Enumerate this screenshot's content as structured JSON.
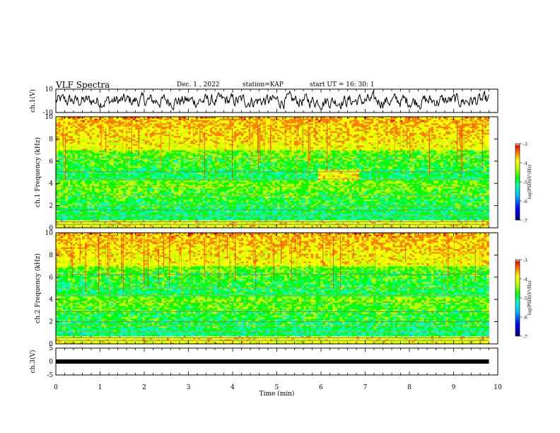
{
  "header": {
    "title": "VLF Spectra",
    "date": "Dec. 1 , 2022",
    "station": "station=KAP",
    "start": "start UT =  16: 30: 1"
  },
  "colorbar": {
    "label": "log(PSD)(V²/Hz)",
    "ticks": [
      "-3",
      "-4",
      "-5",
      "-6",
      "-7"
    ],
    "colors": [
      "#000080",
      "#0000ff",
      "#00bfff",
      "#00ffbf",
      "#00ff00",
      "#bfff00",
      "#ffff00",
      "#ff8000",
      "#ff0000",
      "#ffffff"
    ]
  },
  "chart_data": [
    {
      "type": "line",
      "name": "ch1-waveform",
      "ylabel": "ch.1(V)",
      "ylim": [
        -10,
        10
      ],
      "yticks": [
        "10",
        "-10"
      ],
      "y_level_approx": 0
    },
    {
      "type": "heatmap",
      "name": "ch1-spectrogram",
      "ylabel": "ch.1 Frequency (kHz)",
      "ylim": [
        0,
        10
      ],
      "yticks": [
        "0",
        "2",
        "4",
        "6",
        "8",
        "10"
      ],
      "zlim": [
        -7,
        -3
      ],
      "data_end_min": 9.8
    },
    {
      "type": "heatmap",
      "name": "ch2-spectrogram",
      "ylabel": "ch.2 Frequency (kHz)",
      "ylim": [
        0,
        10
      ],
      "yticks": [
        "0",
        "2",
        "4",
        "6",
        "8",
        "10"
      ],
      "zlim": [
        -7,
        -3
      ],
      "data_end_min": 9.8
    },
    {
      "type": "line",
      "name": "ch3-waveform",
      "ylabel": "ch.3(V)",
      "ylim": [
        -5,
        5
      ],
      "yticks": [
        "5",
        "0",
        "-5"
      ],
      "y_level_approx": 0
    }
  ],
  "xaxis": {
    "label": "Time (min)",
    "xlim": [
      0,
      10
    ],
    "ticks": [
      "0",
      "1",
      "2",
      "3",
      "4",
      "5",
      "6",
      "7",
      "8",
      "9",
      "10"
    ]
  }
}
